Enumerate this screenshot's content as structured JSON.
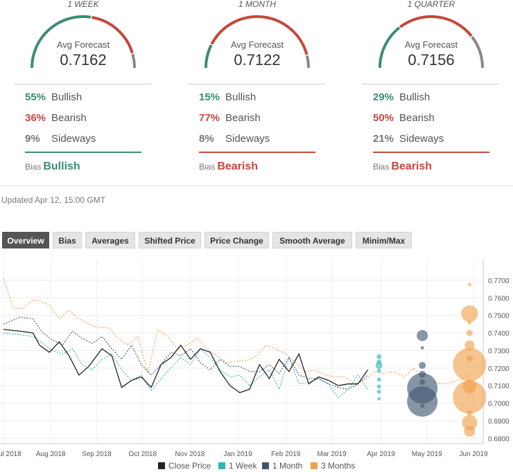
{
  "forecasts": [
    {
      "period": "1 WEEK",
      "avg_label": "Avg Forecast",
      "avg_value": "0.7162",
      "bullish_pct": "55%",
      "bullish_label": "Bullish",
      "bearish_pct": "36%",
      "bearish_label": "Bearish",
      "sideways_pct": "9%",
      "sideways_label": "Sideways",
      "bias_label": "Bias",
      "bias_value": "Bullish"
    },
    {
      "period": "1 MONTH",
      "avg_label": "Avg Forecast",
      "avg_value": "0.7122",
      "bullish_pct": "15%",
      "bullish_label": "Bullish",
      "bearish_pct": "77%",
      "bearish_label": "Bearish",
      "sideways_pct": "8%",
      "sideways_label": "Sideways",
      "bias_label": "Bias",
      "bias_value": "Bearish"
    },
    {
      "period": "1 QUARTER",
      "avg_label": "Avg Forecast",
      "avg_value": "0.7156",
      "bullish_pct": "29%",
      "bullish_label": "Bullish",
      "bearish_pct": "50%",
      "bearish_label": "Bearish",
      "sideways_pct": "21%",
      "sideways_label": "Sideways",
      "bias_label": "Bias",
      "bias_value": "Bearish"
    }
  ],
  "gauge_shares": [
    [
      0.55,
      0.36,
      0.09
    ],
    [
      0.15,
      0.77,
      0.08
    ],
    [
      0.29,
      0.5,
      0.21
    ]
  ],
  "colors": {
    "bullish": "#3b8c74",
    "bearish": "#c5473c",
    "sideways": "#888888",
    "close": "#222222",
    "week": "#2bb5b8",
    "month": "#3e5670",
    "quarter": "#f0a04b"
  },
  "updated": "Updated Apr 12, 15:00 GMT",
  "tabs": [
    "Overview",
    "Bias",
    "Averages",
    "Shifted Price",
    "Price Change",
    "Smooth Average",
    "Minim/Max"
  ],
  "active_tab": "Overview",
  "chart_data": {
    "type": "line",
    "x_labels": [
      "ul 2018",
      "Aug 2018",
      "Sep 2018",
      "Oct 2018",
      "Nov 2018",
      "Jan 2019",
      "Feb 2019",
      "Mar 2019",
      "Apr 2019",
      "May 2019",
      "Jun 2019"
    ],
    "x_label_pos": [
      0,
      0.72,
      1.42,
      2.12,
      2.84,
      3.57,
      4.3,
      5.0,
      5.75,
      6.45,
      7.16
    ],
    "ylim": [
      0.677,
      0.781
    ],
    "yticks": [
      "0.7700",
      "0.7600",
      "0.7500",
      "0.7400",
      "0.7300",
      "0.7200",
      "0.7100",
      "0.7000",
      "0.6900",
      "0.6800"
    ],
    "ytick_values": [
      0.77,
      0.76,
      0.75,
      0.74,
      0.73,
      0.72,
      0.71,
      0.7,
      0.69,
      0.68
    ],
    "series": [
      {
        "name": "Close Price",
        "key": "close",
        "style": "solid",
        "x": [
          0,
          0.25,
          0.45,
          0.55,
          0.7,
          0.85,
          1.0,
          1.15,
          1.3,
          1.5,
          1.65,
          1.8,
          1.95,
          2.1,
          2.25,
          2.4,
          2.55,
          2.7,
          2.85,
          3.0,
          3.15,
          3.3,
          3.45,
          3.6,
          3.75,
          3.9,
          4.05,
          4.2,
          4.35,
          4.5,
          4.65,
          4.8,
          4.95,
          5.1,
          5.25,
          5.4,
          5.55
        ],
        "y": [
          0.742,
          0.741,
          0.74,
          0.733,
          0.729,
          0.735,
          0.727,
          0.716,
          0.721,
          0.731,
          0.727,
          0.709,
          0.713,
          0.715,
          0.709,
          0.722,
          0.726,
          0.733,
          0.725,
          0.731,
          0.729,
          0.718,
          0.71,
          0.706,
          0.708,
          0.722,
          0.714,
          0.725,
          0.718,
          0.728,
          0.711,
          0.715,
          0.713,
          0.71,
          0.711,
          0.711,
          0.719
        ]
      },
      {
        "name": "1 Week",
        "key": "week",
        "style": "dashed",
        "x": [
          0,
          0.25,
          0.45,
          0.6,
          0.75,
          0.9,
          1.05,
          1.2,
          1.35,
          1.5,
          1.65,
          1.8,
          1.95,
          2.1,
          2.25,
          2.4,
          2.55,
          2.7,
          2.85,
          3.0,
          3.15,
          3.3,
          3.45,
          3.6,
          3.75,
          3.9,
          4.05,
          4.2,
          4.35,
          4.5,
          4.65,
          4.8,
          4.95,
          5.1,
          5.25,
          5.4,
          5.55
        ],
        "y": [
          0.74,
          0.739,
          0.738,
          0.734,
          0.73,
          0.728,
          0.731,
          0.722,
          0.719,
          0.725,
          0.728,
          0.719,
          0.713,
          0.716,
          0.707,
          0.714,
          0.72,
          0.726,
          0.722,
          0.731,
          0.726,
          0.719,
          0.715,
          0.716,
          0.71,
          0.715,
          0.719,
          0.708,
          0.726,
          0.711,
          0.712,
          0.714,
          0.711,
          0.703,
          0.708,
          0.716,
          0.708
        ]
      },
      {
        "name": "1 Month",
        "key": "month",
        "style": "dashed",
        "x": [
          0,
          0.25,
          0.45,
          0.6,
          0.75,
          0.9,
          1.05,
          1.2,
          1.35,
          1.5,
          1.65,
          1.8,
          1.95,
          2.1,
          2.25,
          2.4,
          2.55,
          2.7,
          2.85,
          3.0,
          3.15,
          3.3,
          3.45,
          3.6,
          3.75,
          3.9,
          4.05,
          4.2,
          4.35,
          4.5,
          4.65,
          4.8,
          4.95,
          5.1,
          5.25,
          5.4,
          5.55
        ],
        "y": [
          0.745,
          0.749,
          0.748,
          0.74,
          0.736,
          0.733,
          0.741,
          0.737,
          0.734,
          0.738,
          0.731,
          0.725,
          0.733,
          0.722,
          0.716,
          0.722,
          0.729,
          0.727,
          0.731,
          0.723,
          0.719,
          0.725,
          0.721,
          0.721,
          0.718,
          0.718,
          0.722,
          0.717,
          0.726,
          0.716,
          0.714,
          0.714,
          0.711,
          0.709,
          0.708,
          0.711,
          0.716
        ]
      },
      {
        "name": "3 Months",
        "key": "quarter",
        "style": "dashed",
        "x": [
          0,
          0.15,
          0.3,
          0.45,
          0.55,
          0.7,
          0.85,
          1.0,
          1.15,
          1.3,
          1.45,
          1.6,
          1.75,
          1.9,
          2.05,
          2.2,
          2.35,
          2.5,
          2.65,
          2.8,
          2.95,
          3.1,
          3.25,
          3.4,
          3.55,
          3.7,
          3.85,
          4.0,
          4.15,
          4.3,
          4.45,
          4.6,
          4.75,
          4.9,
          5.05,
          5.2,
          5.35,
          5.5,
          5.65,
          5.8,
          5.95,
          6.1,
          6.25,
          6.4,
          6.55,
          6.7,
          6.85,
          7.0,
          7.15
        ],
        "y": [
          0.771,
          0.754,
          0.754,
          0.759,
          0.758,
          0.756,
          0.748,
          0.753,
          0.748,
          0.745,
          0.743,
          0.743,
          0.737,
          0.733,
          0.738,
          0.717,
          0.742,
          0.738,
          0.731,
          0.733,
          0.737,
          0.731,
          0.727,
          0.723,
          0.724,
          0.724,
          0.727,
          0.733,
          0.731,
          0.728,
          0.723,
          0.718,
          0.719,
          0.716,
          0.715,
          0.715,
          0.711,
          0.713,
          0.718,
          0.717,
          0.718,
          0.715,
          0.72,
          0.713,
          0.712,
          0.711,
          0.712,
          0.714,
          0.717
        ]
      }
    ],
    "bubbles": [
      {
        "key": "week",
        "x": 5.72,
        "y": 0.7265,
        "r": 3.5
      },
      {
        "key": "week",
        "x": 5.72,
        "y": 0.7235,
        "r": 3.5
      },
      {
        "key": "week",
        "x": 5.72,
        "y": 0.7215,
        "r": 5
      },
      {
        "key": "week",
        "x": 5.72,
        "y": 0.7185,
        "r": 3
      },
      {
        "key": "week",
        "x": 5.72,
        "y": 0.7135,
        "r": 3
      },
      {
        "key": "week",
        "x": 5.72,
        "y": 0.7095,
        "r": 3
      },
      {
        "key": "week",
        "x": 5.72,
        "y": 0.7065,
        "r": 3
      },
      {
        "key": "week",
        "x": 5.72,
        "y": 0.7025,
        "r": 2.5
      },
      {
        "key": "month",
        "x": 6.38,
        "y": 0.7385,
        "r": 8
      },
      {
        "key": "month",
        "x": 6.38,
        "y": 0.7315,
        "r": 2.5
      },
      {
        "key": "month",
        "x": 6.38,
        "y": 0.7215,
        "r": 5
      },
      {
        "key": "month",
        "x": 6.38,
        "y": 0.7165,
        "r": 5
      },
      {
        "key": "month",
        "x": 6.38,
        "y": 0.712,
        "r": 4
      },
      {
        "key": "month",
        "x": 6.38,
        "y": 0.7085,
        "r": 22
      },
      {
        "key": "month",
        "x": 6.38,
        "y": 0.701,
        "r": 22
      },
      {
        "key": "month",
        "x": 6.38,
        "y": 0.6985,
        "r": 3
      },
      {
        "key": "quarter",
        "x": 7.1,
        "y": 0.7675,
        "r": 2.5
      },
      {
        "key": "quarter",
        "x": 7.1,
        "y": 0.751,
        "r": 12
      },
      {
        "key": "quarter",
        "x": 7.1,
        "y": 0.746,
        "r": 3
      },
      {
        "key": "quarter",
        "x": 7.1,
        "y": 0.74,
        "r": 4.5
      },
      {
        "key": "quarter",
        "x": 7.1,
        "y": 0.733,
        "r": 7
      },
      {
        "key": "quarter",
        "x": 7.1,
        "y": 0.7255,
        "r": 4.5
      },
      {
        "key": "quarter",
        "x": 7.1,
        "y": 0.722,
        "r": 24
      },
      {
        "key": "quarter",
        "x": 7.1,
        "y": 0.7095,
        "r": 10
      },
      {
        "key": "quarter",
        "x": 7.1,
        "y": 0.7035,
        "r": 24
      },
      {
        "key": "quarter",
        "x": 7.1,
        "y": 0.6945,
        "r": 4
      },
      {
        "key": "quarter",
        "x": 7.1,
        "y": 0.689,
        "r": 11
      },
      {
        "key": "quarter",
        "x": 7.1,
        "y": 0.684,
        "r": 8
      }
    ],
    "legend": [
      {
        "label": "Close Price",
        "key": "close"
      },
      {
        "label": "1 Week",
        "key": "week"
      },
      {
        "label": "1 Month",
        "key": "month"
      },
      {
        "label": "3 Months",
        "key": "quarter"
      }
    ]
  }
}
